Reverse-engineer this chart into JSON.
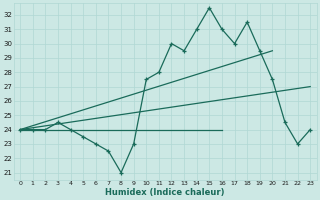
{
  "xlabel": "Humidex (Indice chaleur)",
  "bg_color": "#cce8e4",
  "grid_color": "#b0d8d4",
  "line_color": "#1a6b5a",
  "xlim": [
    -0.5,
    23.5
  ],
  "ylim": [
    20.5,
    32.8
  ],
  "xticks": [
    0,
    1,
    2,
    3,
    4,
    5,
    6,
    7,
    8,
    9,
    10,
    11,
    12,
    13,
    14,
    15,
    16,
    17,
    18,
    19,
    20,
    21,
    22,
    23
  ],
  "yticks": [
    21,
    22,
    23,
    24,
    25,
    26,
    27,
    28,
    29,
    30,
    31,
    32
  ],
  "series1": [
    24,
    24,
    24,
    24.5,
    24,
    23.5,
    23,
    22.5,
    21,
    23,
    27.5,
    28,
    30,
    29.5,
    31,
    32.5,
    31,
    30,
    31.5,
    29.5,
    27.5,
    24.5,
    23,
    24
  ],
  "series2_x": [
    0,
    16
  ],
  "series2_y": [
    24,
    24
  ],
  "series3_x": [
    0,
    20
  ],
  "series3_y": [
    24,
    29.5
  ],
  "series4_x": [
    0,
    23
  ],
  "series4_y": [
    24,
    27
  ]
}
